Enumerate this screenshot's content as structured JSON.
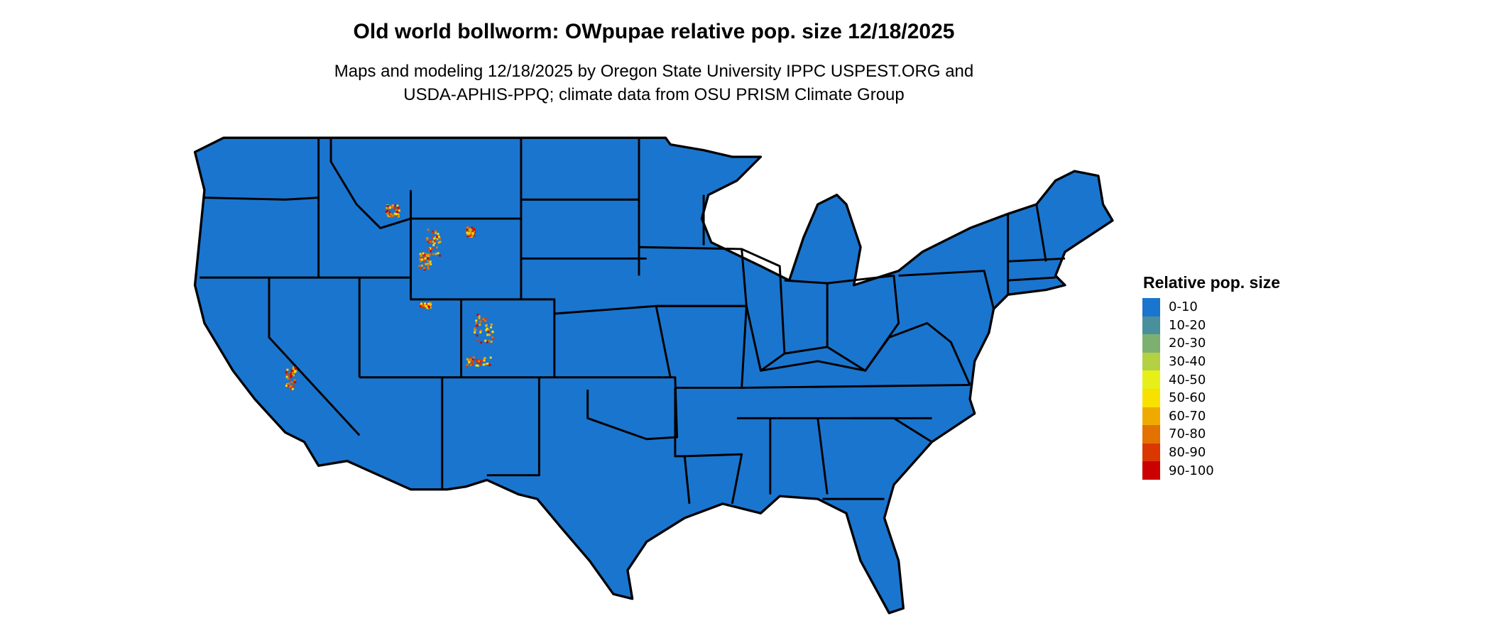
{
  "title": "Old world bollworm: OWpupae relative pop. size 12/18/2025",
  "subtitle_lines": [
    "Maps and modeling 12/18/2025 by Oregon State University IPPC USPEST.ORG and",
    "USDA-APHIS-PPQ; climate data from OSU PRISM Climate Group"
  ],
  "map": {
    "region": "Contiguous United States",
    "base_color": "#1a75cf",
    "border_color": "#000000"
  },
  "legend": {
    "title": "Relative pop. size",
    "placement": "right",
    "items": [
      {
        "label": "0-10",
        "color": "#1a75cf"
      },
      {
        "label": "10-20",
        "color": "#4a8f9c"
      },
      {
        "label": "20-30",
        "color": "#7db070"
      },
      {
        "label": "30-40",
        "color": "#b3d143"
      },
      {
        "label": "40-50",
        "color": "#e6f018"
      },
      {
        "label": "50-60",
        "color": "#f8e100"
      },
      {
        "label": "60-70",
        "color": "#efaa00"
      },
      {
        "label": "70-80",
        "color": "#e37200"
      },
      {
        "label": "80-90",
        "color": "#da3800"
      },
      {
        "label": "90-100",
        "color": "#cc0000"
      }
    ]
  }
}
